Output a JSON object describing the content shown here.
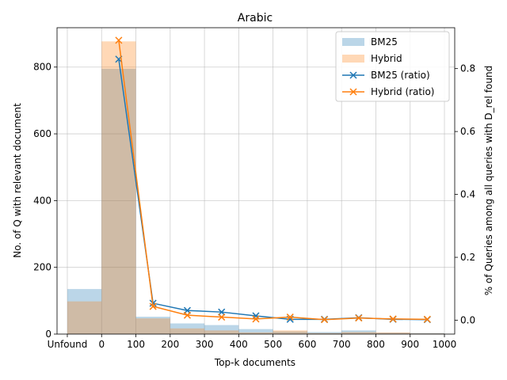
{
  "chart_data": {
    "type": "bar",
    "title": "Arabic",
    "xlabel": "Top-k documents",
    "ylabel": "No. of Q with relevant document",
    "y2label": "% of Queries among all queries with D_rel found",
    "grid": true,
    "legend_position": "top-right",
    "x_tick_labels": [
      "Unfound",
      "0",
      "100",
      "200",
      "300",
      "400",
      "500",
      "600",
      "700",
      "800",
      "900",
      "1000"
    ],
    "x_tick_values": [
      -100,
      0,
      100,
      200,
      300,
      400,
      500,
      600,
      700,
      800,
      900,
      1000
    ],
    "xlim": [
      -130,
      1030
    ],
    "ylim": [
      0,
      918
    ],
    "y_ticks": [
      0,
      200,
      400,
      600,
      800
    ],
    "y2lim": [
      -0.044,
      0.93
    ],
    "y2_ticks": [
      0.0,
      0.2,
      0.4,
      0.6,
      0.8
    ],
    "bins": [
      {
        "label": "Unfound",
        "start": -100,
        "end": 0
      },
      {
        "label": "0-100",
        "start": 0,
        "end": 100
      },
      {
        "label": "100-200",
        "start": 100,
        "end": 200
      },
      {
        "label": "200-300",
        "start": 200,
        "end": 300
      },
      {
        "label": "300-400",
        "start": 300,
        "end": 400
      },
      {
        "label": "400-500",
        "start": 400,
        "end": 500
      },
      {
        "label": "500-600",
        "start": 500,
        "end": 600
      },
      {
        "label": "600-700",
        "start": 600,
        "end": 700
      },
      {
        "label": "700-800",
        "start": 700,
        "end": 800
      },
      {
        "label": "800-900",
        "start": 800,
        "end": 900
      },
      {
        "label": "900-1000",
        "start": 900,
        "end": 1000
      }
    ],
    "bar_series": [
      {
        "name": "BM25",
        "color": "#1f77b4",
        "opacity": 0.3,
        "values": [
          135,
          795,
          52,
          32,
          27,
          15,
          8,
          6,
          11,
          4,
          3
        ]
      },
      {
        "name": "Hybrid",
        "color": "#ff7f0e",
        "opacity": 0.3,
        "values": [
          98,
          877,
          47,
          17,
          11,
          5,
          11,
          3,
          6,
          5,
          2
        ]
      }
    ],
    "line_series": [
      {
        "name": "BM25 (ratio)",
        "color": "#1f77b4",
        "marker": "x",
        "x": [
          50,
          150,
          250,
          350,
          450,
          550,
          650,
          750,
          850,
          950
        ],
        "y": [
          0.83,
          0.054,
          0.031,
          0.026,
          0.014,
          0.003,
          0.003,
          0.008,
          0.003,
          0.002
        ]
      },
      {
        "name": "Hybrid (ratio)",
        "color": "#ff7f0e",
        "marker": "x",
        "x": [
          50,
          150,
          250,
          350,
          450,
          550,
          650,
          750,
          850,
          950
        ],
        "y": [
          0.89,
          0.044,
          0.016,
          0.01,
          0.004,
          0.01,
          0.002,
          0.007,
          0.004,
          0.003
        ]
      }
    ]
  }
}
